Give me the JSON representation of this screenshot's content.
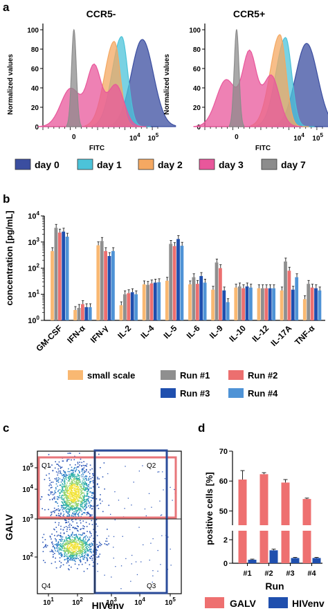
{
  "panel_a": {
    "letter": "a",
    "left_title": "CCR5-",
    "right_title": "CCR5+",
    "ylabel": "Normalized values",
    "xlabel": "FITC",
    "yticks": [
      "0",
      "20",
      "40",
      "60",
      "80",
      "100"
    ],
    "xtick_zero": "0",
    "xtick_e4": "10",
    "xtick_e5": "10"
  },
  "panel_b": {
    "letter": "b",
    "ylabel": "concentration [pg/mL]"
  },
  "panel_c": {
    "letter": "c",
    "quadrants": [
      "Q1",
      "Q2",
      "Q3",
      "Q4"
    ],
    "ylabel": "GALV",
    "xlabel": "HIVenv"
  },
  "panel_d": {
    "letter": "d",
    "ylabel": "positive cells [%]",
    "xlabel": "Run",
    "yticks_top": [
      "50",
      "60",
      "70"
    ],
    "yticks_bottom": [
      "0",
      "2"
    ]
  },
  "colors": {
    "day0": "#3b4ea0",
    "day1": "#4cc3d9",
    "day2": "#f4a862",
    "day3": "#e8579b",
    "day7": "#8c8c8c",
    "small_scale": "#f9b872",
    "run1": "#8f8f8f",
    "run2": "#ec6f6f",
    "run3": "#1f4fae",
    "run4": "#4f93d6",
    "galv": "#ee7070",
    "hivenv": "#1f4fae"
  },
  "chart_data": [
    {
      "type": "area",
      "panel": "a-left",
      "title": "CCR5-",
      "xlabel": "FITC",
      "ylabel": "Normalized values",
      "ylim": [
        0,
        105
      ],
      "x_scale": "biexponential",
      "legend": "bottom",
      "series": [
        {
          "name": "day 0",
          "peak_x": 20000,
          "peak_y": 90
        },
        {
          "name": "day 1",
          "peak_x": 3000,
          "peak_y": 93
        },
        {
          "name": "day 2",
          "peak_x": 1500,
          "peak_y": 88
        },
        {
          "name": "day 3",
          "peak_x": 200,
          "peak_y": 72
        },
        {
          "name": "day 7",
          "peak_x": 0,
          "peak_y": 100
        }
      ]
    },
    {
      "type": "area",
      "panel": "a-right",
      "title": "CCR5+",
      "xlabel": "FITC",
      "ylim": [
        0,
        105
      ],
      "x_scale": "biexponential",
      "legend": "bottom",
      "series": [
        {
          "name": "day 0",
          "peak_x": 20000,
          "peak_y": 86
        },
        {
          "name": "day 1",
          "peak_x": 3000,
          "peak_y": 92
        },
        {
          "name": "day 2",
          "peak_x": 1800,
          "peak_y": 95
        },
        {
          "name": "day 3",
          "peak_x": 100,
          "peak_y": 88
        },
        {
          "name": "day 7",
          "peak_x": 0,
          "peak_y": 100
        }
      ]
    },
    {
      "type": "bar",
      "panel": "b",
      "ylabel": "concentration [pg/mL]",
      "y_scale": "log",
      "ylim": [
        1,
        10000
      ],
      "ytick_labels": [
        "10",
        "10",
        "10",
        "10",
        "10"
      ],
      "ytick_exponents": [
        "0",
        "1",
        "2",
        "3",
        "4"
      ],
      "categories": [
        "GM-CSF",
        "IFN-α",
        "IFN-γ",
        "IL-2",
        "IL-4",
        "IL-5",
        "IL-6",
        "IL-9",
        "IL-10",
        "IL-12",
        "IL-17A",
        "TNF-α"
      ],
      "legend": "bottom",
      "series": [
        {
          "name": "small scale",
          "values": [
            450,
            2.5,
            750,
            3.8,
            24,
            33,
            24,
            15,
            18,
            17,
            14,
            6.5
          ]
        },
        {
          "name": "Run #1",
          "values": [
            3500,
            3,
            1100,
            10,
            23,
            850,
            45,
            165,
            20,
            17,
            180,
            25
          ]
        },
        {
          "name": "Run #2",
          "values": [
            2300,
            4.2,
            450,
            11,
            26,
            700,
            25,
            100,
            17,
            17,
            80,
            18
          ]
        },
        {
          "name": "Run #3",
          "values": [
            2500,
            3.2,
            290,
            12,
            28,
            1300,
            50,
            14,
            20,
            17,
            15,
            17
          ]
        },
        {
          "name": "Run #4",
          "values": [
            1600,
            3.2,
            450,
            10,
            29,
            720,
            28,
            5,
            18,
            17,
            45,
            14
          ]
        }
      ]
    },
    {
      "type": "scatter",
      "panel": "c",
      "xlabel": "HIVenv",
      "ylabel": "GALV",
      "x_scale": "log",
      "y_scale": "log",
      "axis_tick_base": "10",
      "x_tick_exponents": [
        "1",
        "2",
        "3",
        "4",
        "5"
      ],
      "y_tick_exponents": [
        "2",
        "3",
        "4",
        "5"
      ],
      "quadrants": [
        "Q1",
        "Q2",
        "Q3",
        "Q4"
      ],
      "populations": [
        {
          "quadrant": "Q1",
          "center_x": 50,
          "center_y": 8000
        },
        {
          "quadrant": "Q4",
          "center_x": 50,
          "center_y": 150
        }
      ]
    },
    {
      "type": "bar",
      "panel": "d",
      "xlabel": "Run",
      "ylabel": "positive cells [%]",
      "categories": [
        "#1",
        "#2",
        "#3",
        "#4"
      ],
      "axis_break": [
        3,
        45
      ],
      "ylim": [
        0,
        70
      ],
      "legend": "bottom",
      "series": [
        {
          "name": "GALV",
          "values": [
            60.5,
            62.3,
            59.5,
            54.0
          ],
          "errors": [
            3.0,
            0.5,
            1.0,
            0.3
          ]
        },
        {
          "name": "HIVenv",
          "values": [
            0.3,
            1.1,
            0.45,
            0.45
          ],
          "errors": [
            0.05,
            0.1,
            0.05,
            0.05
          ]
        }
      ]
    }
  ]
}
